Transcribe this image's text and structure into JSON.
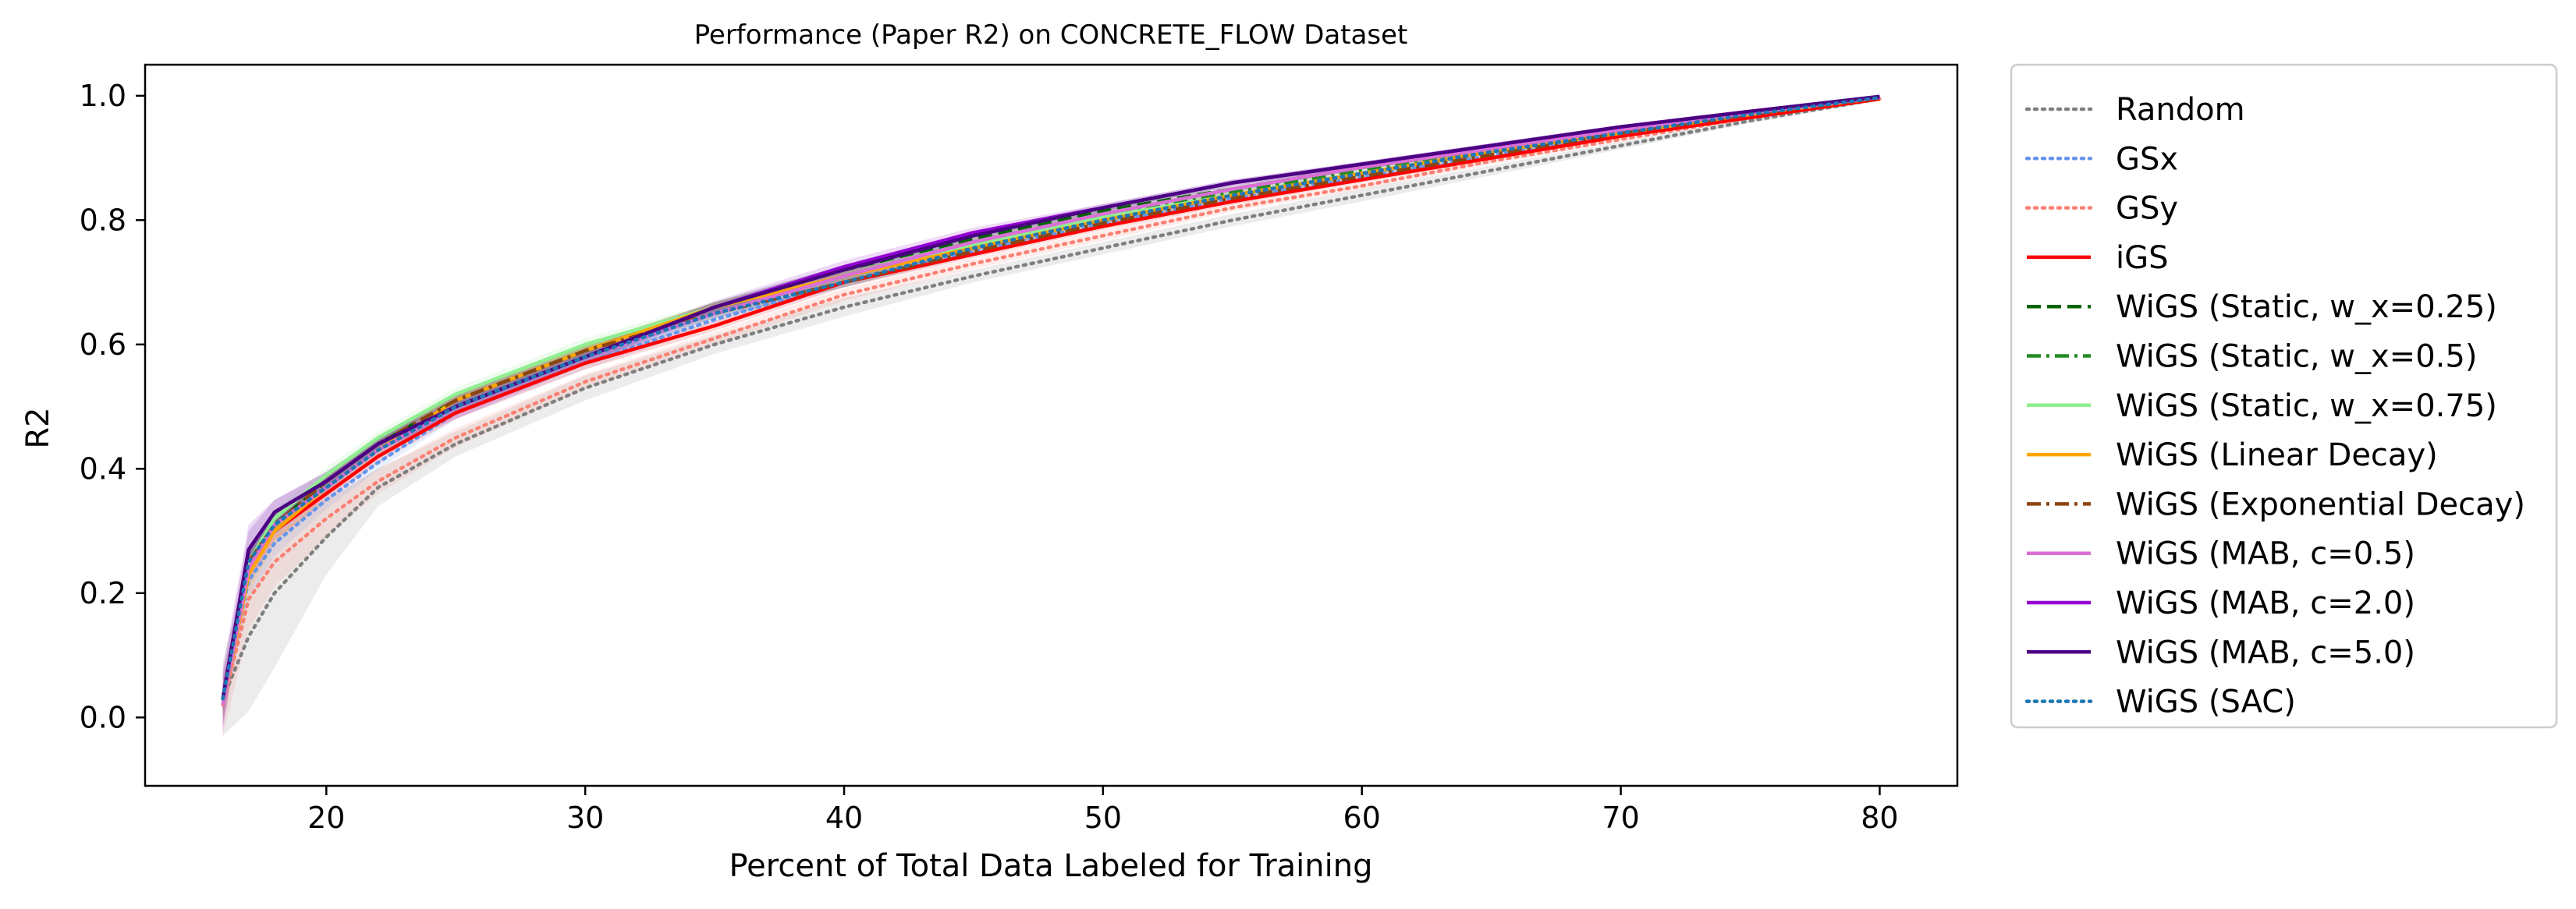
{
  "chart_data": {
    "type": "line",
    "title": "Performance (Paper R2) on CONCRETE_FLOW Dataset",
    "xlabel": "Percent of Total Data Labeled for Training",
    "ylabel": "R2",
    "xlim": [
      13,
      83
    ],
    "ylim": [
      -0.11,
      1.05
    ],
    "xticks": [
      20,
      30,
      40,
      50,
      60,
      70,
      80
    ],
    "yticks": [
      0.0,
      0.2,
      0.4,
      0.6,
      0.8,
      1.0
    ],
    "xtick_labels": [
      "20",
      "30",
      "40",
      "50",
      "60",
      "70",
      "80"
    ],
    "ytick_labels": [
      "0.0",
      "0.2",
      "0.4",
      "0.6",
      "0.8",
      "1.0"
    ],
    "grid": false,
    "legend_position": "outside-right",
    "x": [
      16,
      17,
      18,
      20,
      22,
      25,
      30,
      35,
      40,
      45,
      50,
      55,
      60,
      65,
      70,
      75,
      80
    ],
    "series": [
      {
        "name": "Random",
        "color": "#7f7f7f",
        "dash": "dotted",
        "values": [
          0.03,
          0.13,
          0.2,
          0.29,
          0.37,
          0.44,
          0.53,
          0.6,
          0.66,
          0.71,
          0.755,
          0.8,
          0.84,
          0.88,
          0.92,
          0.96,
          0.995
        ],
        "band": [
          0.06,
          0.12,
          0.12,
          0.06,
          0.03,
          0.02,
          0.02,
          0.015,
          0.015,
          0.01,
          0.01,
          0.01,
          0.01,
          0.008,
          0.006,
          0.004,
          0.003
        ]
      },
      {
        "name": "GSx",
        "color": "#6495ed",
        "dash": "dotted",
        "values": [
          0.03,
          0.22,
          0.28,
          0.35,
          0.41,
          0.49,
          0.57,
          0.64,
          0.7,
          0.75,
          0.795,
          0.835,
          0.87,
          0.905,
          0.94,
          0.97,
          0.995
        ],
        "band": [
          0.03,
          0.03,
          0.02,
          0.015,
          0.012,
          0.01,
          0.01,
          0.01,
          0.008,
          0.008,
          0.006,
          0.006,
          0.005,
          0.004,
          0.003,
          0.002,
          0.002
        ]
      },
      {
        "name": "GSy",
        "color": "#fa8072",
        "dash": "dotted",
        "values": [
          0.02,
          0.19,
          0.25,
          0.32,
          0.38,
          0.45,
          0.54,
          0.61,
          0.68,
          0.73,
          0.775,
          0.82,
          0.855,
          0.895,
          0.93,
          0.965,
          0.995
        ],
        "band": [
          0.05,
          0.05,
          0.04,
          0.03,
          0.02,
          0.015,
          0.012,
          0.01,
          0.01,
          0.008,
          0.008,
          0.006,
          0.006,
          0.005,
          0.004,
          0.003,
          0.002
        ]
      },
      {
        "name": "iGS",
        "color": "#ff0000",
        "dash": "solid",
        "values": [
          0.03,
          0.24,
          0.3,
          0.36,
          0.42,
          0.49,
          0.57,
          0.63,
          0.7,
          0.745,
          0.79,
          0.83,
          0.865,
          0.9,
          0.935,
          0.965,
          0.995
        ],
        "band": [
          0.02,
          0.02,
          0.015,
          0.012,
          0.01,
          0.01,
          0.01,
          0.008,
          0.008,
          0.006,
          0.006,
          0.005,
          0.004,
          0.004,
          0.003,
          0.002,
          0.002
        ]
      },
      {
        "name": "WiGS (Static, w_x=0.25)",
        "color": "#006400",
        "dash": "dashed",
        "values": [
          0.03,
          0.25,
          0.31,
          0.38,
          0.44,
          0.51,
          0.59,
          0.66,
          0.72,
          0.77,
          0.815,
          0.85,
          0.885,
          0.915,
          0.945,
          0.972,
          0.997
        ],
        "band": [
          0.02,
          0.02,
          0.015,
          0.012,
          0.01,
          0.01,
          0.01,
          0.008,
          0.008,
          0.006,
          0.006,
          0.005,
          0.004,
          0.004,
          0.003,
          0.002,
          0.002
        ]
      },
      {
        "name": "WiGS (Static, w_x=0.5)",
        "color": "#228b22",
        "dash": "dashdot",
        "values": [
          0.03,
          0.25,
          0.31,
          0.38,
          0.44,
          0.51,
          0.59,
          0.66,
          0.71,
          0.765,
          0.81,
          0.845,
          0.88,
          0.912,
          0.943,
          0.971,
          0.997
        ],
        "band": [
          0.02,
          0.02,
          0.015,
          0.012,
          0.01,
          0.01,
          0.01,
          0.008,
          0.008,
          0.006,
          0.006,
          0.005,
          0.004,
          0.004,
          0.003,
          0.002,
          0.002
        ]
      },
      {
        "name": "WiGS (Static, w_x=0.75)",
        "color": "#90ee90",
        "dash": "solid",
        "values": [
          0.03,
          0.25,
          0.32,
          0.39,
          0.45,
          0.52,
          0.6,
          0.66,
          0.71,
          0.76,
          0.805,
          0.84,
          0.875,
          0.91,
          0.94,
          0.97,
          0.997
        ],
        "band": [
          0.02,
          0.02,
          0.015,
          0.012,
          0.01,
          0.01,
          0.01,
          0.008,
          0.008,
          0.006,
          0.006,
          0.005,
          0.004,
          0.004,
          0.003,
          0.002,
          0.002
        ]
      },
      {
        "name": "WiGS (Linear Decay)",
        "color": "#ffa500",
        "dash": "solid",
        "values": [
          0.02,
          0.23,
          0.3,
          0.37,
          0.43,
          0.51,
          0.59,
          0.66,
          0.71,
          0.755,
          0.8,
          0.84,
          0.875,
          0.91,
          0.94,
          0.97,
          0.997
        ],
        "band": [
          0.03,
          0.03,
          0.02,
          0.015,
          0.012,
          0.01,
          0.01,
          0.008,
          0.008,
          0.006,
          0.006,
          0.005,
          0.004,
          0.004,
          0.003,
          0.002,
          0.002
        ]
      },
      {
        "name": "WiGS (Exponential Decay)",
        "color": "#8b4513",
        "dash": "dashdot",
        "values": [
          0.03,
          0.25,
          0.31,
          0.38,
          0.44,
          0.51,
          0.59,
          0.65,
          0.7,
          0.75,
          0.795,
          0.835,
          0.87,
          0.905,
          0.94,
          0.97,
          0.997
        ],
        "band": [
          0.02,
          0.02,
          0.015,
          0.012,
          0.01,
          0.01,
          0.01,
          0.008,
          0.008,
          0.006,
          0.006,
          0.005,
          0.004,
          0.004,
          0.003,
          0.002,
          0.002
        ]
      },
      {
        "name": "WiGS (MAB, c=0.5)",
        "color": "#da70d6",
        "dash": "solid",
        "values": [
          0.02,
          0.24,
          0.31,
          0.37,
          0.43,
          0.5,
          0.58,
          0.65,
          0.71,
          0.765,
          0.81,
          0.85,
          0.885,
          0.915,
          0.945,
          0.972,
          0.998
        ],
        "band": [
          0.04,
          0.03,
          0.02,
          0.015,
          0.012,
          0.01,
          0.01,
          0.008,
          0.008,
          0.006,
          0.006,
          0.005,
          0.004,
          0.004,
          0.003,
          0.002,
          0.002
        ]
      },
      {
        "name": "WiGS (MAB, c=2.0)",
        "color": "#9400d3",
        "dash": "solid",
        "values": [
          0.03,
          0.27,
          0.33,
          0.38,
          0.44,
          0.5,
          0.58,
          0.66,
          0.725,
          0.78,
          0.82,
          0.86,
          0.89,
          0.92,
          0.95,
          0.975,
          0.998
        ],
        "band": [
          0.05,
          0.04,
          0.02,
          0.015,
          0.012,
          0.02,
          0.012,
          0.01,
          0.01,
          0.008,
          0.006,
          0.005,
          0.004,
          0.004,
          0.003,
          0.002,
          0.002
        ]
      },
      {
        "name": "WiGS (MAB, c=5.0)",
        "color": "#4b0082",
        "dash": "solid",
        "values": [
          0.03,
          0.27,
          0.33,
          0.38,
          0.44,
          0.5,
          0.58,
          0.66,
          0.72,
          0.775,
          0.82,
          0.86,
          0.89,
          0.92,
          0.95,
          0.975,
          0.999
        ],
        "band": [
          0.04,
          0.03,
          0.02,
          0.015,
          0.012,
          0.01,
          0.01,
          0.008,
          0.008,
          0.006,
          0.006,
          0.005,
          0.004,
          0.004,
          0.003,
          0.002,
          0.002
        ]
      },
      {
        "name": "WiGS (SAC)",
        "color": "#1f77b4",
        "dash": "dotted",
        "values": [
          0.03,
          0.25,
          0.31,
          0.37,
          0.43,
          0.5,
          0.58,
          0.65,
          0.7,
          0.755,
          0.8,
          0.84,
          0.875,
          0.91,
          0.94,
          0.97,
          0.997
        ],
        "band": [
          0.02,
          0.02,
          0.015,
          0.012,
          0.01,
          0.01,
          0.01,
          0.008,
          0.008,
          0.006,
          0.006,
          0.005,
          0.004,
          0.004,
          0.003,
          0.002,
          0.002
        ]
      }
    ]
  }
}
